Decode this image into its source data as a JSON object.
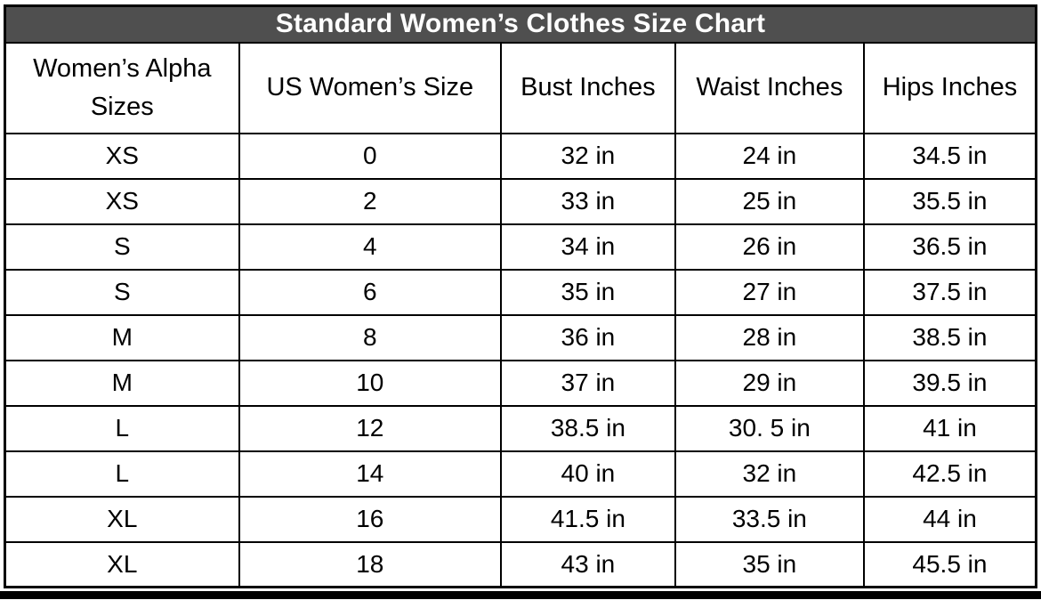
{
  "chart_data": {
    "type": "table",
    "title": "Standard Women’s Clothes Size Chart",
    "columns": [
      "Women’s Alpha Sizes",
      "US Women’s Size",
      "Bust Inches",
      "Waist Inches",
      "Hips Inches"
    ],
    "rows": [
      [
        "XS",
        "0",
        "32 in",
        "24 in",
        "34.5 in"
      ],
      [
        "XS",
        "2",
        "33 in",
        "25 in",
        "35.5 in"
      ],
      [
        "S",
        "4",
        "34 in",
        "26 in",
        "36.5 in"
      ],
      [
        "S",
        "6",
        "35 in",
        "27 in",
        "37.5 in"
      ],
      [
        "M",
        "8",
        "36 in",
        "28 in",
        "38.5 in"
      ],
      [
        "M",
        "10",
        "37 in",
        "29 in",
        "39.5 in"
      ],
      [
        "L",
        "12",
        "38.5 in",
        "30. 5 in",
        "41 in"
      ],
      [
        "L",
        "14",
        "40 in",
        "32 in",
        "42.5 in"
      ],
      [
        "XL",
        "16",
        "41.5 in",
        "33.5 in",
        "44 in"
      ],
      [
        "XL",
        "18",
        "43 in",
        "35 in",
        "45.5 in"
      ]
    ],
    "column_widths_percent": [
      22.7,
      25.4,
      16.9,
      18.3,
      16.7
    ],
    "layout": {
      "grid": true,
      "title_position": "top-banner"
    }
  },
  "colors": {
    "title_bg": "#4f4f4f",
    "title_text": "#ffffff",
    "border": "#000000",
    "cell_bg": "#ffffff",
    "cell_text": "#000000"
  }
}
